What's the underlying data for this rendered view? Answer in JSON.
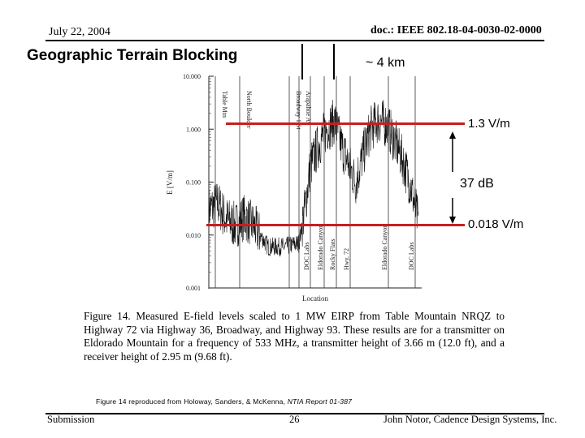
{
  "header": {
    "date": "July 22, 2004",
    "doc_id": "doc.: IEEE 802.18-04-0030-02-0000"
  },
  "slide": {
    "title": "Geographic Terrain Blocking",
    "distance_label": "~ 4 km",
    "upper_level_label": "1.3 V/m",
    "attenuation_label": "37 dB",
    "lower_level_label": "0.018 V/m",
    "caption": "Figure 14. Measured E-field levels scaled to 1 MW EIRP from Table Mountain NRQZ to Highway 72 via Highway 36, Broadway, and Highway 93. These results are for a transmitter on Eldorado Mountain for a frequency of 533 MHz, a transmitter height of 3.66 m (12.0 ft), and a receiver height of 2.95 m (9.68 ft).",
    "credit_prefix": "Figure 14 reproduced from Holoway, Sanders, & McKenna, ",
    "credit_source": "NTIA Report 01-387",
    "accent_color": "#c81e1e"
  },
  "chart_data": {
    "type": "line",
    "title": "",
    "xlabel": "Location",
    "ylabel": "E [V/m]",
    "y_scale": "log",
    "ylim": [
      0.001,
      10.0
    ],
    "y_ticks": [
      "10.000",
      "1.000",
      "0.100",
      "0.010",
      "0.001"
    ],
    "top_markers": [
      "Table Mtn",
      "North Boulder",
      "Broadway 1 St",
      "Arapahoe Av"
    ],
    "bottom_markers": [
      "DOC Labs",
      "Eldorado Canyon",
      "Rocky Flats",
      "Hwy. 72",
      "Eldorado Canyon",
      "DOC Labs"
    ],
    "grid": false
  },
  "footer": {
    "left": "Submission",
    "page": "26",
    "right": "John Notor, Cadence Design Systems, Inc."
  }
}
